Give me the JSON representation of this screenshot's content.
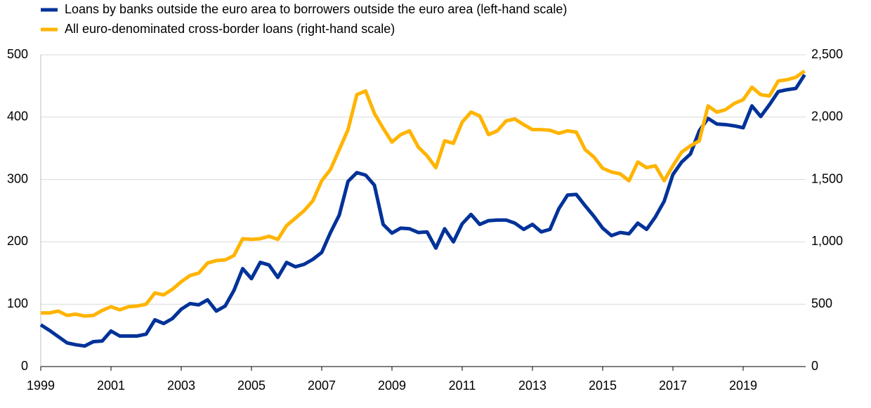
{
  "chart_data": {
    "type": "line",
    "x": [
      1999,
      1999.25,
      1999.5,
      1999.75,
      2000,
      2000.25,
      2000.5,
      2000.75,
      2001,
      2001.25,
      2001.5,
      2001.75,
      2002,
      2002.25,
      2002.5,
      2002.75,
      2003,
      2003.25,
      2003.5,
      2003.75,
      2004,
      2004.25,
      2004.5,
      2004.75,
      2005,
      2005.25,
      2005.5,
      2005.75,
      2006,
      2006.25,
      2006.5,
      2006.75,
      2007,
      2007.25,
      2007.5,
      2007.75,
      2008,
      2008.25,
      2008.5,
      2008.75,
      2009,
      2009.25,
      2009.5,
      2009.75,
      2010,
      2010.25,
      2010.5,
      2010.75,
      2011,
      2011.25,
      2011.5,
      2011.75,
      2012,
      2012.25,
      2012.5,
      2012.75,
      2013,
      2013.25,
      2013.5,
      2013.75,
      2014,
      2014.25,
      2014.5,
      2014.75,
      2015,
      2015.25,
      2015.5,
      2015.75,
      2016,
      2016.25,
      2016.5,
      2016.75,
      2017,
      2017.25,
      2017.5,
      2017.75,
      2018,
      2018.25,
      2018.5,
      2018.75,
      2019,
      2019.25,
      2019.5,
      2019.75,
      2020,
      2020.25,
      2020.5,
      2020.75
    ],
    "series": [
      {
        "name": "Loans by banks outside the euro area to borrowers outside the euro area (left-hand scale)",
        "color": "#003299",
        "axis": "y",
        "values": [
          67,
          58,
          48,
          38,
          35,
          33,
          40,
          41,
          57,
          49,
          49,
          49,
          52,
          75,
          69,
          77,
          92,
          101,
          99,
          107,
          89,
          97,
          122,
          157,
          141,
          167,
          163,
          143,
          167,
          160,
          164,
          172,
          183,
          215,
          243,
          297,
          311,
          307,
          291,
          228,
          214,
          222,
          221,
          215,
          216,
          190,
          221,
          200,
          229,
          244,
          228,
          234,
          235,
          235,
          230,
          220,
          228,
          216,
          220,
          253,
          275,
          276,
          258,
          241,
          222,
          210,
          215,
          213,
          230,
          220,
          240,
          265,
          308,
          328,
          341,
          378,
          398,
          389,
          388,
          386,
          383,
          418,
          401,
          420,
          441,
          444,
          446,
          468
        ]
      },
      {
        "name": "All euro-denominated cross-border loans (right-hand scale)",
        "color": "#ffb400",
        "axis": "y2",
        "values": [
          430,
          430,
          445,
          410,
          420,
          405,
          410,
          450,
          480,
          455,
          480,
          485,
          500,
          590,
          575,
          620,
          680,
          730,
          750,
          830,
          850,
          855,
          890,
          1025,
          1020,
          1025,
          1045,
          1020,
          1130,
          1190,
          1250,
          1330,
          1490,
          1580,
          1740,
          1900,
          2180,
          2210,
          2030,
          1910,
          1800,
          1860,
          1890,
          1760,
          1690,
          1595,
          1810,
          1790,
          1960,
          2040,
          2010,
          1860,
          1890,
          1970,
          1985,
          1940,
          1900,
          1900,
          1895,
          1870,
          1890,
          1880,
          1740,
          1680,
          1590,
          1560,
          1545,
          1490,
          1640,
          1595,
          1610,
          1490,
          1610,
          1720,
          1770,
          1810,
          2090,
          2040,
          2060,
          2110,
          2140,
          2240,
          2180,
          2170,
          2290,
          2300,
          2320,
          2370
        ]
      }
    ],
    "xlim": [
      1999,
      2020.75
    ],
    "xticks": [
      1999,
      2001,
      2003,
      2005,
      2007,
      2009,
      2011,
      2013,
      2015,
      2017,
      2019
    ],
    "ylim": [
      0,
      500
    ],
    "yticks": [
      0,
      100,
      200,
      300,
      400,
      500
    ],
    "y2lim": [
      0,
      2500
    ],
    "y2ticks": [
      0,
      500,
      {
        "value": 1000,
        "label": "1,000"
      },
      {
        "value": 1500,
        "label": "1,500"
      },
      {
        "value": 2000,
        "label": "2,000"
      },
      {
        "value": 2500,
        "label": "2,500"
      }
    ],
    "grid": true
  }
}
